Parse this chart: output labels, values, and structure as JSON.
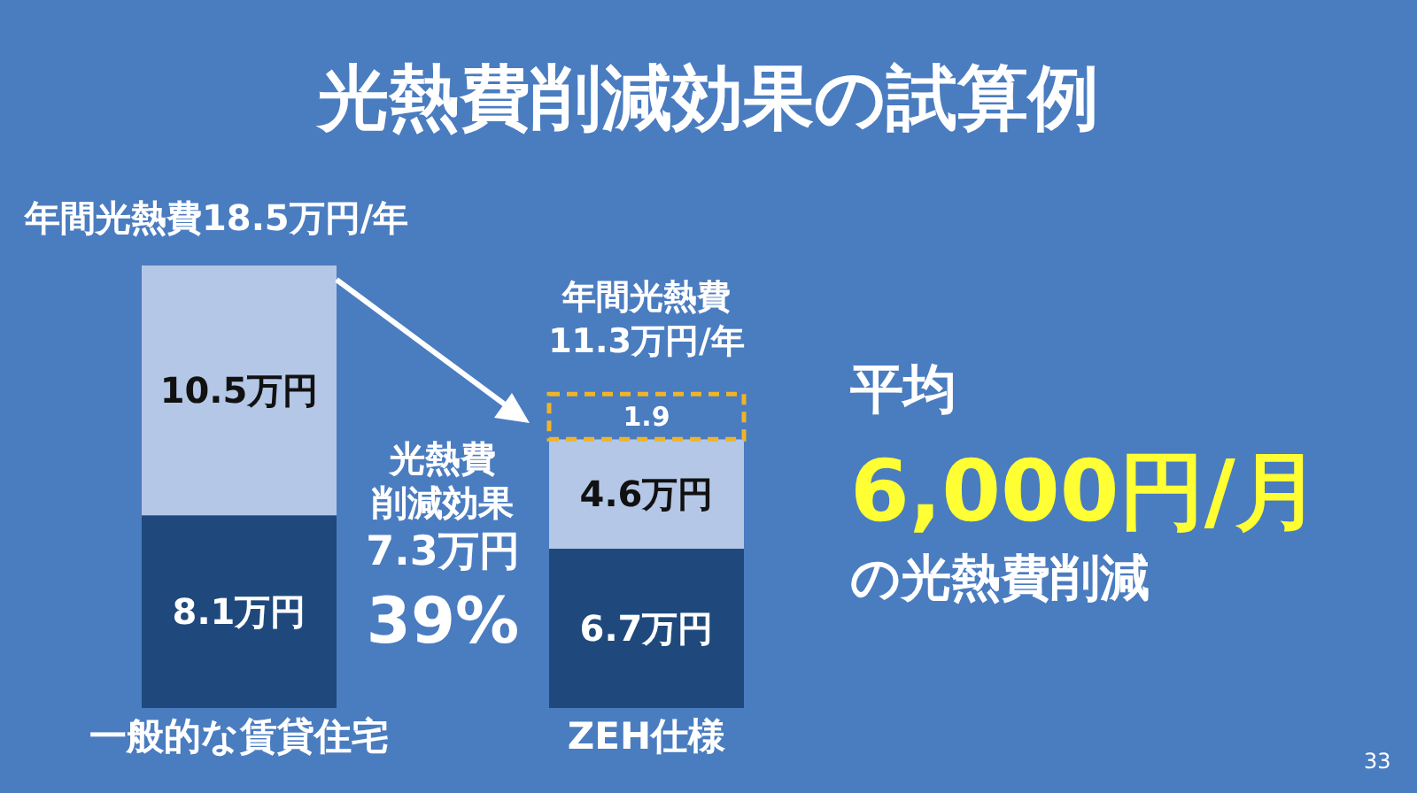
{
  "chart_data": {
    "type": "bar",
    "title": "光熱費削減効果の試算例",
    "categories": [
      "一般的な賃貸住宅",
      "ZEH仕様"
    ],
    "stacked": true,
    "legend": false,
    "grid": false,
    "series": [
      {
        "color": "#1f497d",
        "values": [
          8.1,
          6.7
        ],
        "value_labels": [
          "8.1万円",
          "6.7万円"
        ]
      },
      {
        "color": "#b4c7e7",
        "values": [
          10.5,
          4.6
        ],
        "value_labels": [
          "10.5万円",
          "4.6万円"
        ]
      },
      {
        "color": "#f0b429",
        "values": [
          null,
          1.9
        ],
        "value_labels": [
          null,
          "1.9"
        ],
        "line_style": "dashed"
      }
    ],
    "annotations": [
      "年間光熱費18.5万円/年",
      "年間光熱費",
      "11.3万円/年",
      "光熱費",
      "削減効果",
      "7.3万円",
      "39%",
      "平均",
      "6,000円/月",
      "の光熱費削減",
      "33"
    ]
  }
}
